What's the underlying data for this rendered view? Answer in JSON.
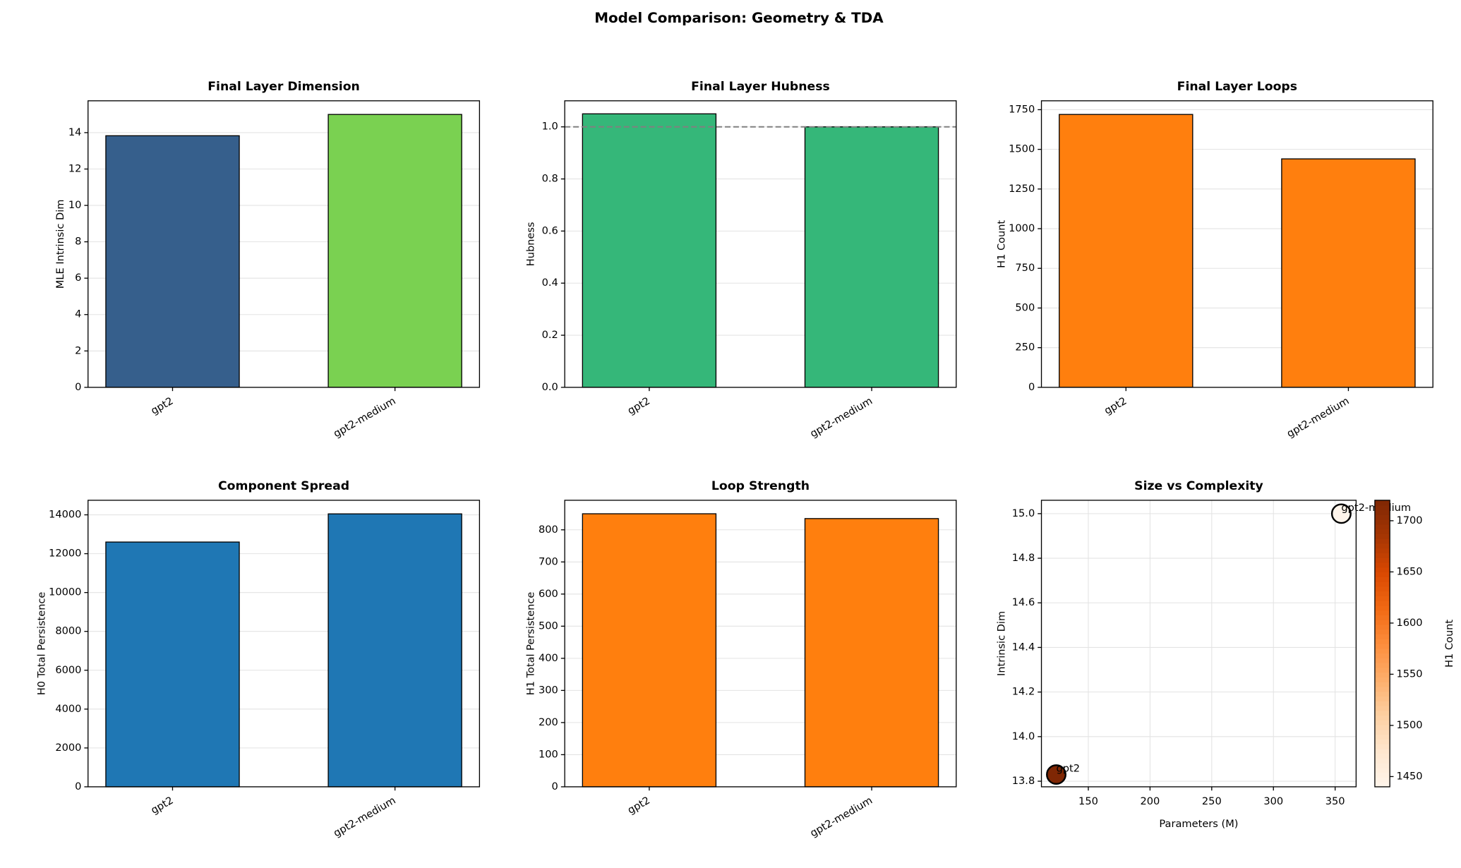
{
  "title": "Model Comparison: Geometry & TDA",
  "chart_data": [
    {
      "type": "bar",
      "title": "Final Layer Dimension",
      "ylabel": "MLE Intrinsic Dim",
      "categories": [
        "gpt2",
        "gpt2-medium"
      ],
      "values": [
        13.83,
        15.0
      ],
      "colors": [
        "#365f8c",
        "#7ad151"
      ],
      "ylim": [
        0,
        15.75
      ],
      "yticks": [
        0,
        2,
        4,
        6,
        8,
        10,
        12,
        14
      ],
      "grid": true
    },
    {
      "type": "bar",
      "title": "Final Layer Hubness",
      "ylabel": "Hubness",
      "categories": [
        "gpt2",
        "gpt2-medium"
      ],
      "values": [
        1.05,
        1.0
      ],
      "color": "#35b779",
      "reference_line": 1.0,
      "ylim": [
        0,
        1.1
      ],
      "yticks": [
        {
          "value": 0,
          "label": "0.0"
        },
        0.2,
        0.4,
        0.6,
        0.8,
        {
          "value": 1,
          "label": "1.0"
        }
      ],
      "grid": true
    },
    {
      "type": "bar",
      "title": "Final Layer Loops",
      "ylabel": "H1 Count",
      "categories": [
        "gpt2",
        "gpt2-medium"
      ],
      "values": [
        1720,
        1440
      ],
      "color": "#ff7f0e",
      "ylim": [
        0,
        1806
      ],
      "yticks": [
        0,
        250,
        500,
        750,
        1000,
        1250,
        1500,
        1750
      ],
      "grid": true
    },
    {
      "type": "bar",
      "title": "Component Spread",
      "ylabel": "H0 Total Persistence",
      "categories": [
        "gpt2",
        "gpt2-medium"
      ],
      "values": [
        12600,
        14050
      ],
      "color": "#1f77b4",
      "ylim": [
        0,
        14750
      ],
      "yticks": [
        0,
        2000,
        4000,
        6000,
        8000,
        10000,
        12000,
        14000
      ],
      "grid": true
    },
    {
      "type": "bar",
      "title": "Loop Strength",
      "ylabel": "H1 Total Persistence",
      "categories": [
        "gpt2",
        "gpt2-medium"
      ],
      "values": [
        850,
        835
      ],
      "color": "#ff7f0e",
      "ylim": [
        0,
        892
      ],
      "yticks": [
        0,
        100,
        200,
        300,
        400,
        500,
        600,
        700,
        800
      ],
      "grid": true
    },
    {
      "type": "scatter",
      "title": "Size vs Complexity",
      "xlabel": "Parameters (M)",
      "ylabel": "Intrinsic Dim",
      "x": [
        124,
        355
      ],
      "y": [
        13.83,
        15.0
      ],
      "color_values": [
        1720,
        1440
      ],
      "labels": [
        "gpt2",
        "gpt2-medium"
      ],
      "cmap": "Oranges",
      "clim": [
        1440,
        1720
      ],
      "cticks": [
        1450,
        1500,
        1550,
        1600,
        1650,
        1700
      ],
      "clabel": "H1 Count",
      "xlim": [
        112,
        367
      ],
      "xticks": [
        150,
        200,
        250,
        300,
        350
      ],
      "ylim": [
        13.775,
        15.06
      ],
      "yticks": [
        13.8,
        {
          "value": 14,
          "label": "14.0"
        },
        14.2,
        14.4,
        14.6,
        14.8,
        {
          "value": 15,
          "label": "15.0"
        }
      ],
      "grid": true
    }
  ]
}
